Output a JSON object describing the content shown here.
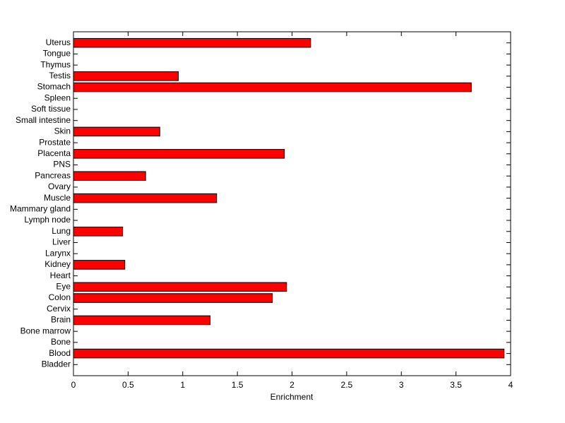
{
  "chart_data": {
    "type": "barh",
    "xlabel": "Enrichment",
    "categories": [
      "Bladder",
      "Blood",
      "Bone",
      "Bone marrow",
      "Brain",
      "Cervix",
      "Colon",
      "Eye",
      "Heart",
      "Kidney",
      "Larynx",
      "Liver",
      "Lung",
      "Lymph node",
      "Mammary gland",
      "Muscle",
      "Ovary",
      "Pancreas",
      "PNS",
      "Placenta",
      "Prostate",
      "Skin",
      "Small intestine",
      "Soft tissue",
      "Spleen",
      "Stomach",
      "Testis",
      "Thymus",
      "Tongue",
      "Uterus"
    ],
    "values": [
      0,
      3.94,
      0,
      0,
      1.25,
      0,
      1.82,
      1.95,
      0,
      0.47,
      0,
      0,
      0.45,
      0,
      0,
      1.31,
      0,
      0.66,
      0,
      1.93,
      0,
      0.79,
      0,
      0,
      0,
      3.64,
      0.96,
      0,
      0,
      2.17
    ],
    "color": "#ff0000",
    "xlim": [
      0,
      4
    ],
    "xticks": [
      0,
      0.5,
      1,
      1.5,
      2,
      2.5,
      3,
      3.5,
      4
    ],
    "grid": false
  }
}
